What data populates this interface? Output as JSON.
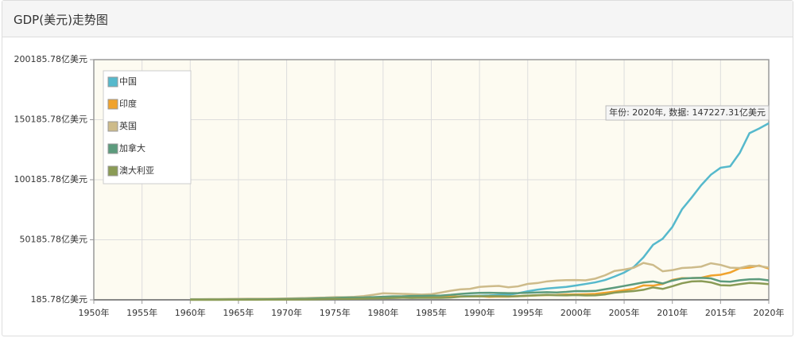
{
  "chart_data": {
    "type": "line",
    "title": "GDP(美元)走势图",
    "annotation": "年份: 2020年, 数据: 147227.31亿美元",
    "x": [
      1960,
      1961,
      1962,
      1963,
      1964,
      1965,
      1966,
      1967,
      1968,
      1969,
      1970,
      1971,
      1972,
      1973,
      1974,
      1975,
      1976,
      1977,
      1978,
      1979,
      1980,
      1981,
      1982,
      1983,
      1984,
      1985,
      1986,
      1987,
      1988,
      1989,
      1990,
      1991,
      1992,
      1993,
      1994,
      1995,
      1996,
      1997,
      1998,
      1999,
      2000,
      2001,
      2002,
      2003,
      2004,
      2005,
      2006,
      2007,
      2008,
      2009,
      2010,
      2011,
      2012,
      2013,
      2014,
      2015,
      2016,
      2017,
      2018,
      2019,
      2020
    ],
    "xlim": [
      1950,
      2020
    ],
    "xticks": [
      {
        "value": 1950,
        "label": "1950年"
      },
      {
        "value": 1955,
        "label": "1955年"
      },
      {
        "value": 1960,
        "label": "1960年"
      },
      {
        "value": 1965,
        "label": "1965年"
      },
      {
        "value": 1970,
        "label": "1970年"
      },
      {
        "value": 1975,
        "label": "1975年"
      },
      {
        "value": 1980,
        "label": "1980年"
      },
      {
        "value": 1985,
        "label": "1985年"
      },
      {
        "value": 1990,
        "label": "1990年"
      },
      {
        "value": 1995,
        "label": "1995年"
      },
      {
        "value": 2000,
        "label": "2000年"
      },
      {
        "value": 2005,
        "label": "2005年"
      },
      {
        "value": 2010,
        "label": "2010年"
      },
      {
        "value": 2015,
        "label": "2015年"
      },
      {
        "value": 2020,
        "label": "2020年"
      }
    ],
    "ylim": [
      185.78,
      200185.78
    ],
    "yticks": [
      {
        "value": 185.78,
        "label": "185.78亿美元"
      },
      {
        "value": 50185.78,
        "label": "50185.78亿美元"
      },
      {
        "value": 100185.78,
        "label": "100185.78亿美元"
      },
      {
        "value": 150185.78,
        "label": "150185.78亿美元"
      },
      {
        "value": 200185.78,
        "label": "200185.78亿美元"
      }
    ],
    "grid": true,
    "legend": "upper-left",
    "series": [
      {
        "name": "中国",
        "color": "#56b9cc",
        "values": [
          597,
          500,
          472,
          507,
          594,
          704,
          767,
          726,
          700,
          786,
          926,
          998,
          1137,
          1385,
          1442,
          1634,
          1539,
          1749,
          1495,
          1783,
          1911,
          1960,
          2051,
          2307,
          2599,
          3094,
          3008,
          2729,
          3123,
          3477,
          3609,
          3834,
          4269,
          4447,
          5643,
          7345,
          8637,
          9615,
          10290,
          10940,
          12113,
          13393,
          14706,
          16603,
          19553,
          22860,
          27521,
          35522,
          45982,
          51101,
          60872,
          75515,
          85322,
          95704,
          104385,
          110155,
          111379,
          122651,
          138948,
          142799,
          147227
        ]
      },
      {
        "name": "印度",
        "color": "#f0a32d",
        "values": [
          370,
          392,
          422,
          487,
          567,
          599,
          459,
          504,
          534,
          583,
          627,
          669,
          712,
          855,
          990,
          988,
          1029,
          1217,
          1372,
          1528,
          1864,
          1961,
          2002,
          2185,
          2123,
          2325,
          2484,
          2796,
          2965,
          2960,
          3209,
          2702,
          2881,
          2792,
          3272,
          3602,
          3929,
          4154,
          4213,
          4587,
          4684,
          4855,
          5149,
          6076,
          7091,
          8203,
          9403,
          12167,
          11989,
          13418,
          16756,
          18230,
          18277,
          18567,
          20391,
          21036,
          22948,
          26515,
          27013,
          28709,
          26230
        ]
      },
      {
        "name": "英国",
        "color": "#cdbb8a",
        "values": [
          730,
          775,
          812,
          868,
          943,
          1011,
          1069,
          1113,
          1079,
          1166,
          1310,
          1485,
          1697,
          1928,
          2063,
          2410,
          2326,
          2634,
          3356,
          4381,
          5650,
          5400,
          5150,
          4890,
          4610,
          4900,
          6210,
          7690,
          8900,
          9270,
          10930,
          11420,
          11790,
          10610,
          11400,
          13440,
          14140,
          15530,
          16260,
          16550,
          16650,
          16410,
          17830,
          20550,
          24220,
          25380,
          26930,
          30900,
          29230,
          23940,
          24910,
          26650,
          27070,
          27850,
          30650,
          29280,
          26940,
          26660,
          28610,
          28330,
          27040
        ]
      },
      {
        "name": "加拿大",
        "color": "#5c9b7d",
        "values": [
          410,
          406,
          420,
          446,
          483,
          526,
          579,
          619,
          668,
          728,
          880,
          994,
          1132,
          1312,
          1604,
          1739,
          2068,
          2117,
          2188,
          2430,
          2740,
          3060,
          3140,
          3410,
          3480,
          3640,
          3770,
          4310,
          5080,
          5650,
          5940,
          6100,
          5920,
          5770,
          5780,
          6040,
          6280,
          6540,
          6340,
          6780,
          7440,
          7380,
          7600,
          8960,
          10260,
          11730,
          13190,
          14680,
          15530,
          13760,
          16170,
          17930,
          18280,
          18470,
          18050,
          15560,
          15280,
          16490,
          17250,
          17420,
          16440
        ]
      },
      {
        "name": "澳大利亚",
        "color": "#8a9b55",
        "values": [
          186,
          196,
          195,
          209,
          235,
          259,
          272,
          303,
          327,
          365,
          415,
          452,
          519,
          639,
          886,
          975,
          1049,
          1104,
          1188,
          1343,
          1500,
          1764,
          1931,
          1770,
          1939,
          1807,
          1822,
          2120,
          2844,
          3107,
          3110,
          3260,
          3250,
          3120,
          3230,
          3680,
          4010,
          4350,
          4000,
          3890,
          4150,
          3790,
          3950,
          4670,
          6140,
          6930,
          7470,
          8530,
          10550,
          9280,
          11460,
          13960,
          15470,
          15770,
          14680,
          12350,
          12080,
          13240,
          14270,
          13960,
          13270
        ]
      }
    ]
  }
}
